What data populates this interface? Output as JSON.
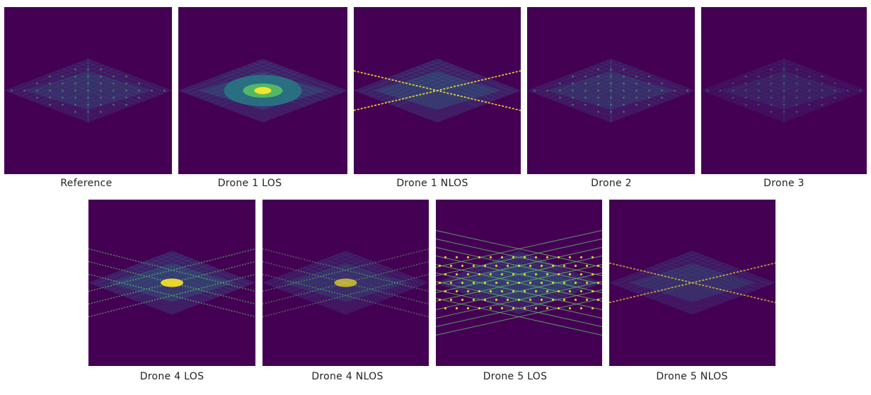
{
  "colors": {
    "background": "#440154",
    "low": "#3b528b",
    "mid": "#21918c",
    "high": "#5ec962",
    "peak": "#fde725"
  },
  "panels": [
    {
      "id": "reference",
      "label": "Reference",
      "pattern": "diffuse-diamond",
      "intensity": "medium"
    },
    {
      "id": "drone1-los",
      "label": "Drone 1 LOS",
      "pattern": "central-blob",
      "intensity": "high"
    },
    {
      "id": "drone1-nlos",
      "label": "Drone 1 NLOS",
      "pattern": "single-cross",
      "intensity": "high"
    },
    {
      "id": "drone2",
      "label": "Drone 2",
      "pattern": "diffuse-diamond",
      "intensity": "medium"
    },
    {
      "id": "drone3",
      "label": "Drone 3",
      "pattern": "diffuse-diamond",
      "intensity": "low"
    },
    {
      "id": "drone4-los",
      "label": "Drone 4 LOS",
      "pattern": "multi-cross",
      "intensity": "high"
    },
    {
      "id": "drone4-nlos",
      "label": "Drone 4 NLOS",
      "pattern": "multi-cross",
      "intensity": "medium"
    },
    {
      "id": "drone5-los",
      "label": "Drone 5 LOS",
      "pattern": "grid-lattice",
      "intensity": "high"
    },
    {
      "id": "drone5-nlos",
      "label": "Drone 5 NLOS",
      "pattern": "single-cross",
      "intensity": "medium"
    }
  ]
}
